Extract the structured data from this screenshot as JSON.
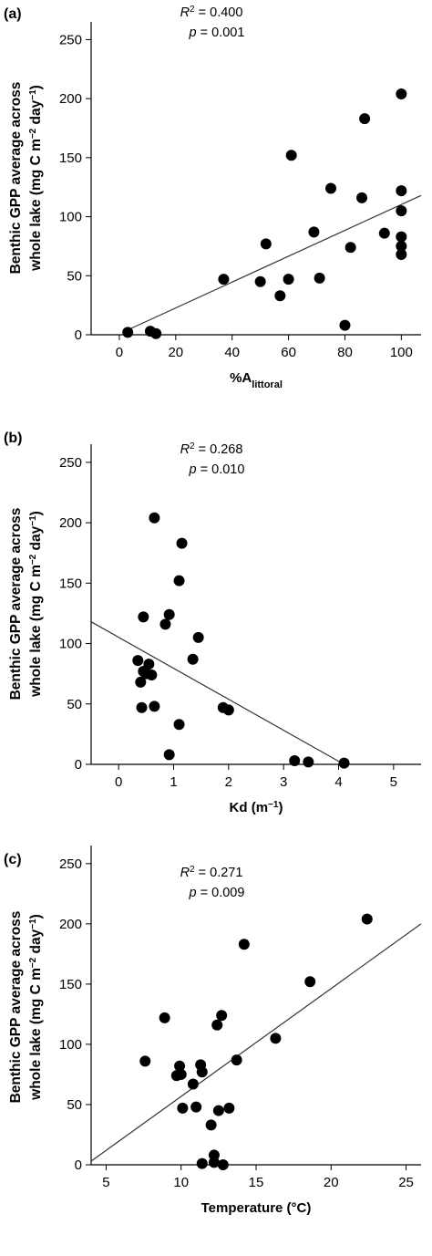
{
  "chart_data": [
    {
      "type": "scatter",
      "panel_label": "(a)",
      "stats": {
        "r2_label": "R",
        "r2_sup": "2",
        "r2_value": " = 0.400",
        "p_label": "p",
        "p_value": " = 0.001"
      },
      "ylabel_line1": "Benthic GPP average across",
      "ylabel_line2_prefix": "whole lake (mg C m",
      "ylabel_sup1": "−2",
      "ylabel_mid": " day",
      "ylabel_sup2": "−1",
      "ylabel_end": ")",
      "xlabel_main": "%A",
      "xlabel_sub": "littoral",
      "xlim": [
        -10,
        107
      ],
      "ylim": [
        0,
        265
      ],
      "xticks": [
        0,
        20,
        40,
        60,
        80,
        100
      ],
      "yticks": [
        0,
        50,
        100,
        150,
        200,
        250
      ],
      "tick_labels_x": [
        "0",
        "20",
        "40",
        "60",
        "80",
        "100"
      ],
      "tick_labels_y": [
        "0",
        "50",
        "100",
        "150",
        "200",
        "250"
      ],
      "trendline": {
        "x": [
          2,
          107
        ],
        "y": [
          3,
          118
        ]
      },
      "points": [
        {
          "x": 3,
          "y": 2
        },
        {
          "x": 11,
          "y": 3
        },
        {
          "x": 13,
          "y": 1
        },
        {
          "x": 37,
          "y": 47
        },
        {
          "x": 50,
          "y": 45
        },
        {
          "x": 52,
          "y": 77
        },
        {
          "x": 57,
          "y": 33
        },
        {
          "x": 60,
          "y": 47
        },
        {
          "x": 61,
          "y": 152
        },
        {
          "x": 69,
          "y": 87
        },
        {
          "x": 71,
          "y": 48
        },
        {
          "x": 75,
          "y": 124
        },
        {
          "x": 80,
          "y": 8
        },
        {
          "x": 82,
          "y": 74
        },
        {
          "x": 86,
          "y": 116
        },
        {
          "x": 87,
          "y": 183
        },
        {
          "x": 94,
          "y": 86
        },
        {
          "x": 100,
          "y": 204
        },
        {
          "x": 100,
          "y": 122
        },
        {
          "x": 100,
          "y": 105
        },
        {
          "x": 100,
          "y": 83
        },
        {
          "x": 100,
          "y": 75
        },
        {
          "x": 100,
          "y": 68
        }
      ]
    },
    {
      "type": "scatter",
      "panel_label": "(b)",
      "stats": {
        "r2_label": "R",
        "r2_sup": "2",
        "r2_value": " = 0.268",
        "p_label": "p",
        "p_value": " = 0.010"
      },
      "ylabel_line1": "Benthic GPP average across",
      "ylabel_line2_prefix": "whole lake (mg C m",
      "ylabel_sup1": "−2",
      "ylabel_mid": " day",
      "ylabel_sup2": "−1",
      "ylabel_end": ")",
      "xlabel_main": "Kd (m",
      "xlabel_sup": "−1",
      "xlabel_end": ")",
      "xlim": [
        -0.5,
        5.5
      ],
      "ylim": [
        0,
        265
      ],
      "xticks": [
        0,
        1,
        2,
        3,
        4,
        5
      ],
      "yticks": [
        0,
        50,
        100,
        150,
        200,
        250
      ],
      "tick_labels_x": [
        "0",
        "1",
        "2",
        "3",
        "4",
        "5"
      ],
      "tick_labels_y": [
        "0",
        "50",
        "100",
        "150",
        "200",
        "250"
      ],
      "trendline": {
        "x": [
          -0.5,
          4.1
        ],
        "y": [
          118,
          0
        ]
      },
      "points": [
        {
          "x": 0.35,
          "y": 86
        },
        {
          "x": 0.4,
          "y": 68
        },
        {
          "x": 0.42,
          "y": 47
        },
        {
          "x": 0.45,
          "y": 77
        },
        {
          "x": 0.5,
          "y": 75
        },
        {
          "x": 0.55,
          "y": 83
        },
        {
          "x": 0.6,
          "y": 74
        },
        {
          "x": 0.65,
          "y": 48
        },
        {
          "x": 0.65,
          "y": 204
        },
        {
          "x": 0.85,
          "y": 116
        },
        {
          "x": 0.92,
          "y": 124
        },
        {
          "x": 0.92,
          "y": 8
        },
        {
          "x": 1.1,
          "y": 33
        },
        {
          "x": 1.1,
          "y": 152
        },
        {
          "x": 1.15,
          "y": 183
        },
        {
          "x": 1.35,
          "y": 87
        },
        {
          "x": 1.45,
          "y": 105
        },
        {
          "x": 1.9,
          "y": 47
        },
        {
          "x": 2.0,
          "y": 45
        },
        {
          "x": 3.2,
          "y": 3
        },
        {
          "x": 3.45,
          "y": 2
        },
        {
          "x": 4.1,
          "y": 1
        },
        {
          "x": 0.45,
          "y": 122
        }
      ]
    },
    {
      "type": "scatter",
      "panel_label": "(c)",
      "stats": {
        "r2_label": "R",
        "r2_sup": "2",
        "r2_value": " = 0.271",
        "p_label": "p",
        "p_value": " = 0.009"
      },
      "ylabel_line1": "Benthic GPP average across",
      "ylabel_line2_prefix": "whole lake (mg C m",
      "ylabel_sup1": "−2",
      "ylabel_mid": " day",
      "ylabel_sup2": "−1",
      "ylabel_end": ")",
      "xlabel_main": "Temperature (°C)",
      "xlim": [
        4,
        26
      ],
      "ylim": [
        0,
        265
      ],
      "xticks": [
        5,
        10,
        15,
        20,
        25
      ],
      "yticks": [
        0,
        50,
        100,
        150,
        200,
        250
      ],
      "tick_labels_x": [
        "5",
        "10",
        "15",
        "20",
        "25"
      ],
      "tick_labels_y": [
        "0",
        "50",
        "100",
        "150",
        "200",
        "250"
      ],
      "trendline": {
        "x": [
          4,
          26
        ],
        "y": [
          3,
          200
        ]
      },
      "points": [
        {
          "x": 7.6,
          "y": 86
        },
        {
          "x": 8.9,
          "y": 122
        },
        {
          "x": 9.7,
          "y": 74
        },
        {
          "x": 9.9,
          "y": 82
        },
        {
          "x": 10.0,
          "y": 75
        },
        {
          "x": 10.1,
          "y": 47
        },
        {
          "x": 10.8,
          "y": 67
        },
        {
          "x": 11.0,
          "y": 48
        },
        {
          "x": 11.3,
          "y": 83
        },
        {
          "x": 11.4,
          "y": 77
        },
        {
          "x": 11.4,
          "y": 1
        },
        {
          "x": 12.0,
          "y": 33
        },
        {
          "x": 12.2,
          "y": 8
        },
        {
          "x": 12.2,
          "y": 2
        },
        {
          "x": 12.4,
          "y": 116
        },
        {
          "x": 12.5,
          "y": 45
        },
        {
          "x": 12.7,
          "y": 124
        },
        {
          "x": 12.8,
          "y": 0
        },
        {
          "x": 13.2,
          "y": 47
        },
        {
          "x": 13.7,
          "y": 87
        },
        {
          "x": 14.2,
          "y": 183
        },
        {
          "x": 16.3,
          "y": 105
        },
        {
          "x": 18.6,
          "y": 152
        },
        {
          "x": 22.4,
          "y": 204
        }
      ]
    }
  ]
}
